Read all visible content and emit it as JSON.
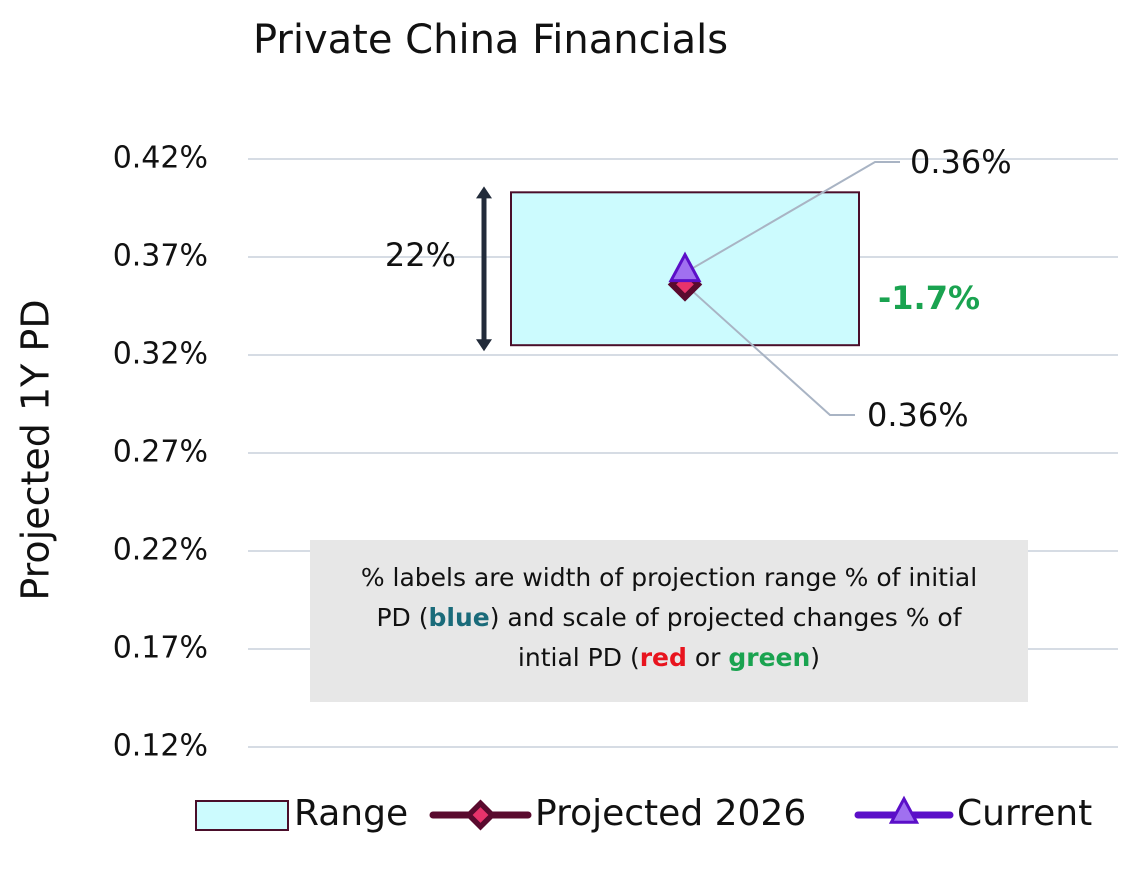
{
  "chart_data": {
    "type": "range",
    "title": "Private China Financials",
    "y_label": "Projected 1Y PD",
    "ylim": [
      0.12,
      0.42
    ],
    "yticks": [
      {
        "value": 0.12,
        "label": "0.12%"
      },
      {
        "value": 0.17,
        "label": "0.17%"
      },
      {
        "value": 0.22,
        "label": "0.22%"
      },
      {
        "value": 0.27,
        "label": "0.27%"
      },
      {
        "value": 0.32,
        "label": "0.32%"
      },
      {
        "value": 0.37,
        "label": "0.37%"
      },
      {
        "value": 0.42,
        "label": "0.42%"
      }
    ],
    "grid": true,
    "range": {
      "name": "Range",
      "color": "#ccfbfe",
      "edge_color": "#4a0e2a",
      "low": 0.325,
      "high": 0.403,
      "width_label": "22%"
    },
    "series": [
      {
        "name": "Projected 2026",
        "color": "#5a0a2e",
        "marker_color": "#e8336b",
        "marker": "diamond",
        "values": [
          0.356
        ],
        "value_labels": [
          "0.36%"
        ]
      },
      {
        "name": "Current",
        "color": "#5b0fc8",
        "marker_color": "#a070f0",
        "marker": "triangle",
        "values": [
          0.362
        ],
        "value_labels": [
          "0.36%"
        ]
      }
    ],
    "change_label": {
      "text": "-1.7%",
      "color": "#1aa350"
    },
    "note": [
      {
        "text": "% labels are width of projection range % of initial PD ("
      },
      {
        "text": "blue",
        "color": "#1a6b7a"
      },
      {
        "text": ") and scale of projected changes % of intial PD ("
      },
      {
        "text": "red",
        "color": "#e8141e"
      },
      {
        "text": " or "
      },
      {
        "text": "green",
        "color": "#1aa350"
      },
      {
        "text": ")"
      }
    ]
  }
}
